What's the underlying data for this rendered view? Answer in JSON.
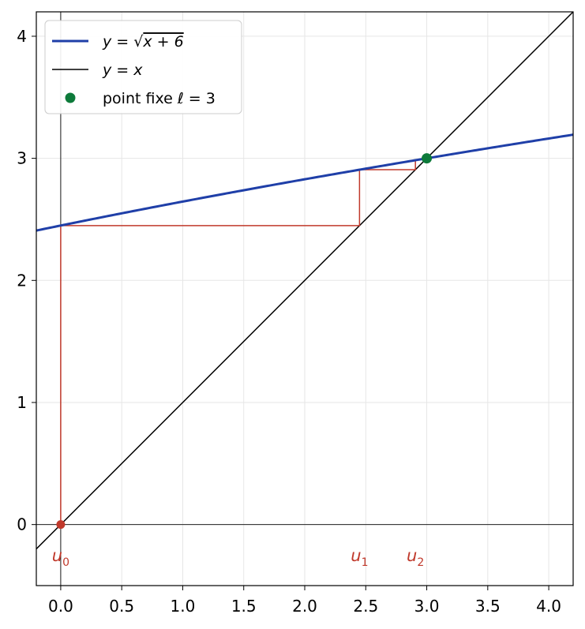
{
  "chart_data": {
    "type": "line",
    "xlim": [
      -0.2,
      4.2
    ],
    "ylim": [
      -0.5,
      4.2
    ],
    "grid": true,
    "legend_position": "top-left",
    "x_ticks": [
      "0.0",
      "0.5",
      "1.0",
      "1.5",
      "2.0",
      "2.5",
      "3.0",
      "3.5",
      "4.0"
    ],
    "y_ticks": [
      "0",
      "1",
      "2",
      "3",
      "4"
    ],
    "x_tick_values": [
      0,
      0.5,
      1,
      1.5,
      2,
      2.5,
      3,
      3.5,
      4
    ],
    "y_tick_values": [
      0,
      1,
      2,
      3,
      4
    ],
    "series": [
      {
        "name": "y = √(x + 6)",
        "kind": "curve",
        "color": "#1f3fa8"
      },
      {
        "name": "y = x",
        "kind": "identity",
        "color": "#000000"
      }
    ],
    "fixed_point": {
      "name": "point fixe ℓ = 3",
      "x": 3,
      "y": 3,
      "color": "#0d7a3a"
    },
    "start_point": {
      "x": 0,
      "y": 0,
      "color": "#c0392b"
    },
    "cobweb": {
      "color": "#c0392b",
      "iterates": [
        0,
        2.449,
        2.907,
        2.985
      ]
    },
    "iterate_labels": [
      {
        "base": "u",
        "sub": "0",
        "x": 0
      },
      {
        "base": "u",
        "sub": "1",
        "x": 2.449
      },
      {
        "base": "u",
        "sub": "2",
        "x": 2.907
      }
    ]
  },
  "legend": [
    {
      "label_prefix": "y = ",
      "label_radicand": "x + 6",
      "kind": "curve",
      "color": "#1f3fa8"
    },
    {
      "label": "y = x",
      "kind": "line",
      "color": "#000000"
    },
    {
      "label": "point fixe ℓ = 3",
      "kind": "dot",
      "color": "#0d7a3a"
    }
  ]
}
